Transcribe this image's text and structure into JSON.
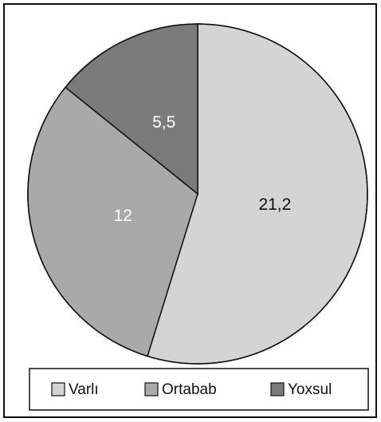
{
  "chart_data": {
    "type": "pie",
    "categories": [
      "Varlı",
      "Ortabab",
      "Yoxsul"
    ],
    "values": [
      21.2,
      12,
      5.5
    ],
    "value_labels": [
      "21,2",
      "12",
      "5,5"
    ],
    "colors": [
      "#d4d4d4",
      "#a9a9a9",
      "#7b7b7b"
    ],
    "legend": "bottom"
  }
}
